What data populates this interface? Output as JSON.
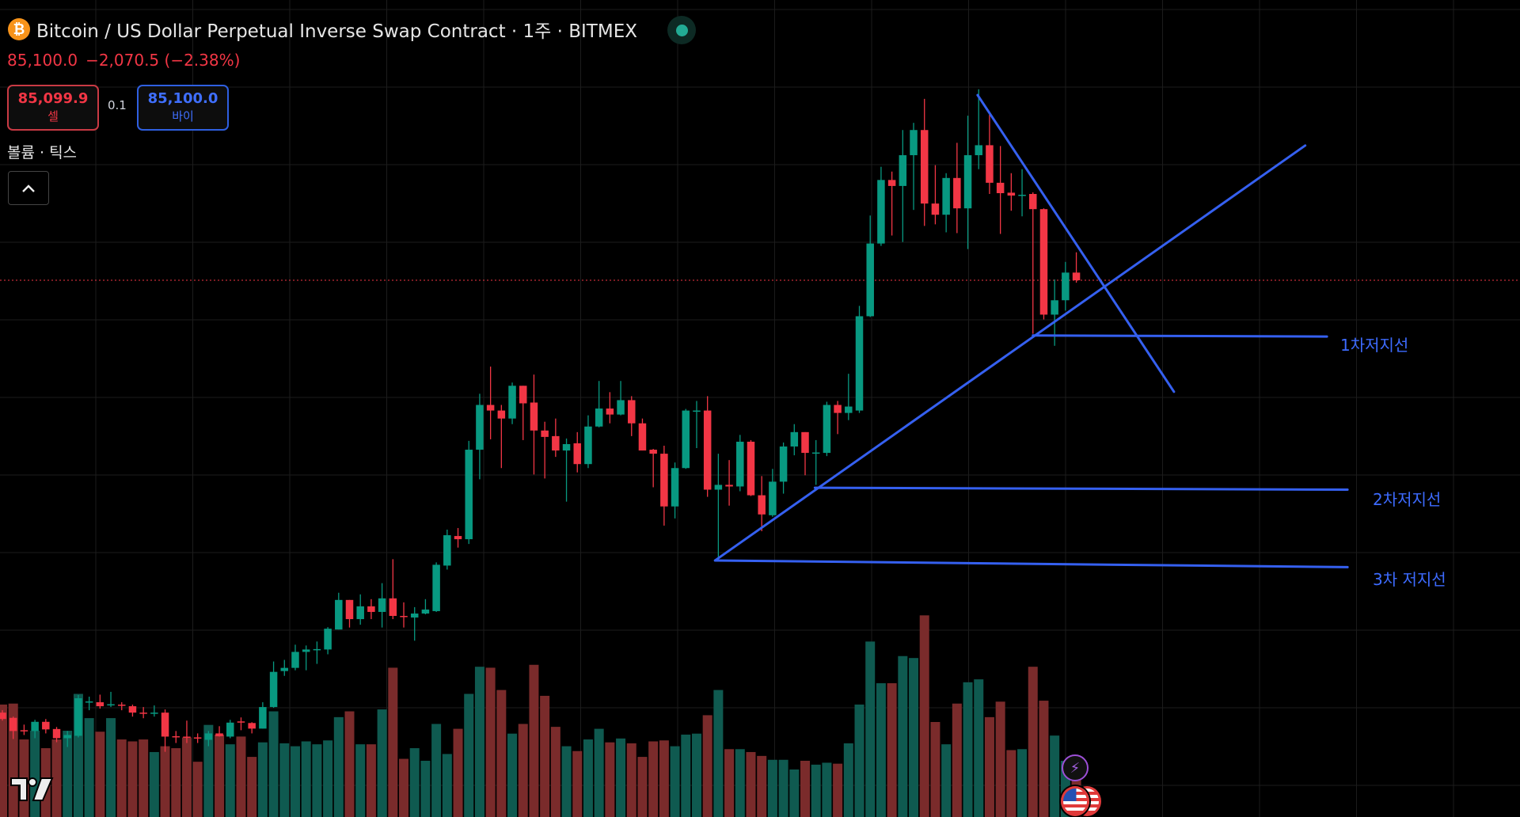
{
  "header": {
    "title": "Bitcoin / US Dollar Perpetual Inverse Swap Contract · 1주 · BITMEX",
    "symbol_icon": "bitcoin-icon",
    "market_status_icon": "market-open-dot",
    "last_price": "85,100.0",
    "change": "−2,070.5 (−2.38%)"
  },
  "trade": {
    "sell_price": "85,099.9",
    "sell_label": "셀",
    "quantity": "0.1",
    "buy_price": "85,100.0",
    "buy_label": "바이"
  },
  "indicator": {
    "volume_label": "볼륨 · 틱스",
    "collapse_icon": "chevron-up-icon"
  },
  "drawings": {
    "level_1_label": "1차저지선",
    "level_2_label": "2차저지선",
    "level_3_label": "3차 저지선"
  },
  "colors": {
    "up": "#089981",
    "down": "#f23645",
    "volume_up": "#0f5a50",
    "volume_down": "#7a2b2b",
    "trendline": "#3560f0",
    "last_price_line": "#f23645",
    "grid": "#1c1c1c"
  },
  "chart_data": {
    "type": "candlestick",
    "title": "",
    "xlabel": "",
    "ylabel": "",
    "interval": "1주",
    "xlim": [
      -0.22,
      139.9
    ],
    "ylim": [
      17940,
      120170
    ],
    "grid": true,
    "last_price": 85100,
    "candles_ohlc": [
      [
        31000,
        31300,
        30000,
        30200
      ],
      [
        30350,
        30500,
        27700,
        28700
      ],
      [
        28800,
        29500,
        28200,
        28700
      ],
      [
        28700,
        30100,
        27800,
        29850
      ],
      [
        29850,
        30200,
        28400,
        28900
      ],
      [
        28950,
        29200,
        27300,
        27800
      ],
      [
        27800,
        28700,
        26700,
        28200
      ],
      [
        28100,
        33200,
        27900,
        32800
      ],
      [
        32300,
        33000,
        31300,
        32400
      ],
      [
        32300,
        33250,
        31500,
        31800
      ],
      [
        32000,
        33600,
        31700,
        32050
      ],
      [
        32000,
        32300,
        31300,
        31900
      ],
      [
        31800,
        32000,
        30500,
        31000
      ],
      [
        31000,
        31700,
        30300,
        30900
      ],
      [
        30900,
        31900,
        30500,
        31000
      ],
      [
        31000,
        31400,
        26100,
        28000
      ],
      [
        28050,
        28700,
        27200,
        28000
      ],
      [
        28000,
        30000,
        27200,
        27900
      ],
      [
        27900,
        28400,
        27200,
        27800
      ],
      [
        27600,
        28700,
        26800,
        28400
      ],
      [
        28400,
        29300,
        28000,
        28050
      ],
      [
        28000,
        30100,
        27800,
        29750
      ],
      [
        29900,
        30400,
        28800,
        29800
      ],
      [
        29700,
        29800,
        28400,
        29000
      ],
      [
        29000,
        32300,
        29000,
        31700
      ],
      [
        31700,
        37400,
        31600,
        36100
      ],
      [
        36200,
        37600,
        35600,
        36600
      ],
      [
        36600,
        39500,
        36300,
        38600
      ],
      [
        38600,
        39400,
        36300,
        38900
      ],
      [
        38900,
        39900,
        37100,
        38950
      ],
      [
        38900,
        41700,
        38300,
        41500
      ],
      [
        41400,
        46000,
        41400,
        45100
      ],
      [
        45100,
        45100,
        41650,
        42700
      ],
      [
        42700,
        45800,
        42000,
        44300
      ],
      [
        44300,
        45200,
        42700,
        43600
      ],
      [
        43600,
        47200,
        41650,
        45300
      ],
      [
        45300,
        50200,
        42700,
        43100
      ],
      [
        43100,
        44800,
        41650,
        43050
      ],
      [
        42900,
        44200,
        40000,
        43400
      ],
      [
        43400,
        45200,
        43300,
        43900
      ],
      [
        43700,
        49800,
        43600,
        49500
      ],
      [
        49400,
        53900,
        48900,
        53200
      ],
      [
        53100,
        54100,
        51650,
        52700
      ],
      [
        52700,
        65000,
        52100,
        63900
      ],
      [
        63900,
        70900,
        60200,
        69500
      ],
      [
        69500,
        74300,
        65200,
        68800
      ],
      [
        68800,
        69500,
        61600,
        67800
      ],
      [
        67800,
        72300,
        67100,
        71900
      ],
      [
        71900,
        71900,
        65100,
        69700
      ],
      [
        69800,
        73300,
        60800,
        66300
      ],
      [
        66300,
        67400,
        60300,
        65500
      ],
      [
        65600,
        67800,
        63000,
        63800
      ],
      [
        63800,
        65300,
        57400,
        64600
      ],
      [
        64700,
        66100,
        61060,
        62100
      ],
      [
        62100,
        68200,
        61600,
        66800
      ],
      [
        66800,
        72500,
        66700,
        69050
      ],
      [
        69050,
        71100,
        67200,
        68300
      ],
      [
        68300,
        72500,
        68200,
        70100
      ],
      [
        70100,
        70600,
        65600,
        67200
      ],
      [
        67200,
        67800,
        63800,
        63800
      ],
      [
        63900,
        64000,
        59200,
        63400
      ],
      [
        63400,
        64400,
        54400,
        56800
      ],
      [
        56800,
        62300,
        55300,
        61600
      ],
      [
        61600,
        69000,
        61500,
        68800
      ],
      [
        68700,
        70000,
        64100,
        68800
      ],
      [
        68800,
        70600,
        58000,
        58900
      ],
      [
        58900,
        63400,
        50000,
        59500
      ],
      [
        59500,
        62600,
        56900,
        59300
      ],
      [
        59300,
        65750,
        58700,
        64900
      ],
      [
        64900,
        65100,
        58100,
        58200
      ],
      [
        58200,
        60600,
        53700,
        55800
      ],
      [
        55700,
        61500,
        55500,
        59900
      ],
      [
        59900,
        64800,
        58400,
        64300
      ],
      [
        64300,
        67100,
        63200,
        66100
      ],
      [
        66100,
        66100,
        60700,
        63500
      ],
      [
        63500,
        65100,
        59500,
        63550
      ],
      [
        63500,
        69900,
        63100,
        69500
      ],
      [
        69500,
        70000,
        65850,
        68500
      ],
      [
        68500,
        73400,
        67600,
        69300
      ],
      [
        68800,
        81900,
        68500,
        80600
      ],
      [
        80600,
        93200,
        80500,
        89700
      ],
      [
        89700,
        99300,
        89400,
        97650
      ],
      [
        97650,
        98700,
        90700,
        96900
      ],
      [
        96900,
        103900,
        89900,
        100750
      ],
      [
        100750,
        104800,
        93900,
        103900
      ],
      [
        103900,
        107800,
        91900,
        94700
      ],
      [
        94700,
        99500,
        92100,
        93300
      ],
      [
        93300,
        98500,
        91100,
        97900
      ],
      [
        97900,
        102300,
        91000,
        94100
      ],
      [
        94100,
        105700,
        89000,
        100750
      ],
      [
        100750,
        109000,
        99000,
        102000
      ],
      [
        102000,
        105800,
        95900,
        97300
      ],
      [
        97300,
        101900,
        90900,
        96000
      ],
      [
        96060,
        98500,
        93800,
        95700
      ],
      [
        95700,
        99000,
        93100,
        95800
      ],
      [
        95900,
        96100,
        78400,
        94000
      ],
      [
        94000,
        94100,
        80200,
        80800
      ],
      [
        80800,
        85200,
        76900,
        82600
      ],
      [
        82600,
        87400,
        81300,
        86060
      ],
      [
        86060,
        88600,
        84800,
        85100
      ]
    ],
    "volume_relative": [
      116,
      117,
      80,
      89,
      71,
      80,
      89,
      127,
      102,
      88,
      102,
      80,
      78,
      80,
      67,
      73,
      71,
      82,
      57,
      95,
      85,
      75,
      83,
      62,
      77,
      109,
      76,
      73,
      78,
      75,
      79,
      103,
      109,
      75,
      75,
      111,
      154,
      60,
      71,
      58,
      96,
      65,
      91,
      127,
      155,
      154,
      131,
      86,
      96,
      157,
      125,
      93,
      73,
      68,
      80,
      91,
      77,
      81,
      76,
      62,
      78,
      79,
      73,
      85,
      86,
      105,
      131,
      70,
      70,
      67,
      63,
      59,
      59,
      49,
      58,
      54,
      56,
      55,
      76,
      116,
      181,
      138,
      138,
      166,
      164,
      208,
      98,
      75,
      117,
      139,
      142,
      103,
      119,
      69,
      70,
      155,
      120,
      84,
      58,
      53
    ],
    "trendlines": [
      {
        "name": "descending-resistance",
        "from": [
          89.9,
          108270
        ],
        "to": [
          108.0,
          71150
        ]
      },
      {
        "name": "ascending-support",
        "from": [
          65.7,
          50040
        ],
        "to": [
          120.1,
          101960
        ]
      },
      {
        "name": "level-1",
        "label": "1차저지선",
        "from": [
          95.0,
          78190
        ],
        "to": [
          122.1,
          78060
        ]
      },
      {
        "name": "level-2",
        "label": "2차저지선",
        "from": [
          74.9,
          59140
        ],
        "to": [
          124.0,
          58900
        ]
      },
      {
        "name": "level-3",
        "label": "3차 저지선",
        "from": [
          65.7,
          50040
        ],
        "to": [
          124.0,
          49200
        ]
      }
    ]
  },
  "events": {
    "lightning_icon": "lightning-event-icon",
    "flag_icon": "us-flag-event-icon"
  }
}
